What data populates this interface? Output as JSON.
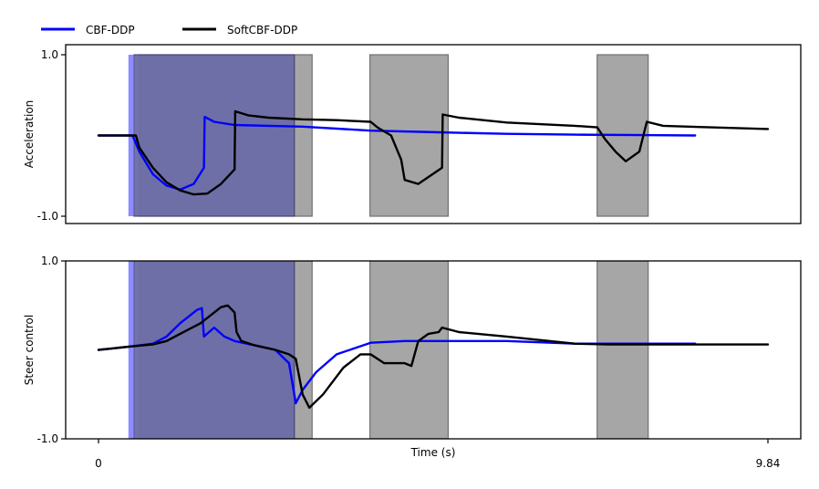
{
  "chart_data": {
    "type": "line",
    "legend": {
      "placement": "top-left",
      "entries": [
        {
          "name": "CBF-DDP",
          "color": "#0000ff"
        },
        {
          "name": "SoftCBF-DDP",
          "color": "#000000"
        }
      ]
    },
    "xlabel": "Time (s)",
    "xlim": [
      0,
      9.84
    ],
    "xticks": [
      "0",
      "9.84"
    ],
    "shaded_regions": {
      "cbf_color": "#6b6ba6",
      "cbf_edge_color": "#8080ff",
      "soft_color": "#a6a6a6",
      "cbf": [
        {
          "x0": 0.52,
          "x1": 2.88
        }
      ],
      "soft": [
        {
          "x0": 0.6,
          "x1": 3.14
        },
        {
          "x0": 3.99,
          "x1": 5.14
        },
        {
          "x0": 7.33,
          "x1": 8.08
        }
      ]
    },
    "panels": [
      {
        "ylabel": "Acceleration",
        "ylim": [
          -1.0,
          1.0
        ],
        "yticks": [
          "1.0",
          "-1.0"
        ],
        "series": [
          {
            "name": "CBF-DDP",
            "color": "#0000ff",
            "points": [
              [
                0,
                0
              ],
              [
                0.5,
                0
              ],
              [
                0.6,
                -0.2
              ],
              [
                0.8,
                -0.48
              ],
              [
                1.0,
                -0.62
              ],
              [
                1.2,
                -0.67
              ],
              [
                1.4,
                -0.6
              ],
              [
                1.55,
                -0.4
              ],
              [
                1.56,
                0.23
              ],
              [
                1.7,
                0.17
              ],
              [
                2.0,
                0.13
              ],
              [
                2.5,
                0.12
              ],
              [
                3.0,
                0.11
              ],
              [
                4.0,
                0.06
              ],
              [
                5.0,
                0.04
              ],
              [
                6.0,
                0.02
              ],
              [
                7.0,
                0.01
              ],
              [
                8.0,
                0.005
              ],
              [
                8.77,
                0.0
              ]
            ]
          },
          {
            "name": "SoftCBF-DDP",
            "color": "#000000",
            "points": [
              [
                0,
                0
              ],
              [
                0.55,
                0
              ],
              [
                0.6,
                -0.15
              ],
              [
                0.8,
                -0.4
              ],
              [
                1.0,
                -0.58
              ],
              [
                1.2,
                -0.68
              ],
              [
                1.4,
                -0.73
              ],
              [
                1.6,
                -0.72
              ],
              [
                1.8,
                -0.6
              ],
              [
                2.0,
                -0.42
              ],
              [
                2.01,
                0.3
              ],
              [
                2.2,
                0.25
              ],
              [
                2.5,
                0.22
              ],
              [
                3.0,
                0.2
              ],
              [
                3.5,
                0.19
              ],
              [
                4.0,
                0.17
              ],
              [
                4.1,
                0.1
              ],
              [
                4.3,
                0.0
              ],
              [
                4.45,
                -0.3
              ],
              [
                4.5,
                -0.55
              ],
              [
                4.7,
                -0.6
              ],
              [
                5.05,
                -0.4
              ],
              [
                5.06,
                0.26
              ],
              [
                5.3,
                0.22
              ],
              [
                6.0,
                0.16
              ],
              [
                7.0,
                0.12
              ],
              [
                7.33,
                0.1
              ],
              [
                7.45,
                -0.05
              ],
              [
                7.6,
                -0.2
              ],
              [
                7.75,
                -0.32
              ],
              [
                7.95,
                -0.2
              ],
              [
                8.06,
                0.17
              ],
              [
                8.3,
                0.12
              ],
              [
                9.0,
                0.1
              ],
              [
                9.84,
                0.08
              ]
            ]
          }
        ]
      },
      {
        "ylabel": "Steer control",
        "ylim": [
          -1.0,
          1.0
        ],
        "yticks": [
          "1.0",
          "-1.0"
        ],
        "series": [
          {
            "name": "CBF-DDP",
            "color": "#0000ff",
            "points": [
              [
                0,
                0
              ],
              [
                0.5,
                0.04
              ],
              [
                0.8,
                0.07
              ],
              [
                1.0,
                0.15
              ],
              [
                1.2,
                0.3
              ],
              [
                1.45,
                0.45
              ],
              [
                1.52,
                0.47
              ],
              [
                1.55,
                0.15
              ],
              [
                1.7,
                0.25
              ],
              [
                1.85,
                0.15
              ],
              [
                2.0,
                0.1
              ],
              [
                2.3,
                0.05
              ],
              [
                2.6,
                0.0
              ],
              [
                2.8,
                -0.15
              ],
              [
                2.9,
                -0.6
              ],
              [
                3.0,
                -0.45
              ],
              [
                3.2,
                -0.25
              ],
              [
                3.5,
                -0.05
              ],
              [
                4.0,
                0.08
              ],
              [
                4.5,
                0.1
              ],
              [
                5.0,
                0.1
              ],
              [
                6.0,
                0.1
              ],
              [
                7.0,
                0.07
              ],
              [
                8.0,
                0.07
              ],
              [
                8.77,
                0.07
              ]
            ]
          },
          {
            "name": "SoftCBF-DDP",
            "color": "#000000",
            "points": [
              [
                0,
                0
              ],
              [
                0.5,
                0.04
              ],
              [
                0.8,
                0.06
              ],
              [
                1.0,
                0.1
              ],
              [
                1.2,
                0.18
              ],
              [
                1.5,
                0.3
              ],
              [
                1.7,
                0.42
              ],
              [
                1.8,
                0.48
              ],
              [
                1.9,
                0.5
              ],
              [
                2.0,
                0.42
              ],
              [
                2.03,
                0.2
              ],
              [
                2.1,
                0.1
              ],
              [
                2.3,
                0.05
              ],
              [
                2.6,
                0.0
              ],
              [
                2.8,
                -0.05
              ],
              [
                2.9,
                -0.1
              ],
              [
                3.0,
                -0.5
              ],
              [
                3.1,
                -0.65
              ],
              [
                3.3,
                -0.5
              ],
              [
                3.6,
                -0.2
              ],
              [
                3.85,
                -0.05
              ],
              [
                4.0,
                -0.05
              ],
              [
                4.2,
                -0.15
              ],
              [
                4.5,
                -0.15
              ],
              [
                4.6,
                -0.18
              ],
              [
                4.7,
                0.1
              ],
              [
                4.85,
                0.18
              ],
              [
                5.0,
                0.2
              ],
              [
                5.05,
                0.25
              ],
              [
                5.3,
                0.2
              ],
              [
                6.0,
                0.15
              ],
              [
                7.0,
                0.07
              ],
              [
                7.5,
                0.06
              ],
              [
                8.0,
                0.06
              ],
              [
                9.84,
                0.06
              ]
            ]
          }
        ]
      }
    ]
  }
}
